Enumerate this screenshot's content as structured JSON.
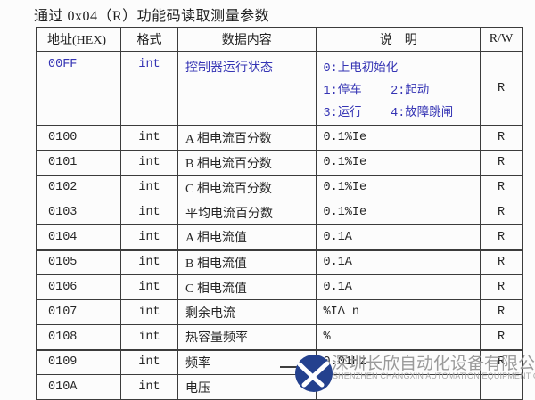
{
  "title": "通过 0x04（R）功能码读取测量参数",
  "table": {
    "headers": {
      "addr": "地址(HEX)",
      "fmt": "格式",
      "content": "数据内容",
      "desc": "说    明",
      "rw": "R/W"
    },
    "rows": [
      {
        "addr": "00FF",
        "fmt": "int",
        "content": "控制器运行状态",
        "desc": [
          "0:上电初始化",
          "1:停车    2:起动",
          "3:运行    4:故障跳闸"
        ],
        "rw": "R",
        "highlight": true
      },
      {
        "addr": "0100",
        "fmt": "int",
        "content": "A 相电流百分数",
        "desc": [
          "0.1%Ie"
        ],
        "rw": "R"
      },
      {
        "addr": "0101",
        "fmt": "int",
        "content": "B 相电流百分数",
        "desc": [
          "0.1%Ie"
        ],
        "rw": "R"
      },
      {
        "addr": "0102",
        "fmt": "int",
        "content": "C 相电流百分数",
        "desc": [
          "0.1%Ie"
        ],
        "rw": "R"
      },
      {
        "addr": "0103",
        "fmt": "int",
        "content": "平均电流百分数",
        "desc": [
          "0.1%Ie"
        ],
        "rw": "R"
      },
      {
        "addr": "0104",
        "fmt": "int",
        "content": "A 相电流值",
        "desc": [
          "0.1A"
        ],
        "rw": "R"
      },
      {
        "addr": "0105",
        "fmt": "int",
        "content": "B 相电流值",
        "desc": [
          "0.1A"
        ],
        "rw": "R",
        "thick_top": true
      },
      {
        "addr": "0106",
        "fmt": "int",
        "content": "C 相电流值",
        "desc": [
          "0.1A"
        ],
        "rw": "R"
      },
      {
        "addr": "0107",
        "fmt": "int",
        "content": "剩余电流",
        "desc": [
          "%IΔ n"
        ],
        "rw": "R"
      },
      {
        "addr": "0108",
        "fmt": "int",
        "content": "热容量频率",
        "desc": [
          "%"
        ],
        "rw": "R"
      },
      {
        "addr": "0109",
        "fmt": "int",
        "content": "频率",
        "desc": [
          "0.01Hz"
        ],
        "rw": "R",
        "thick_top": true
      },
      {
        "addr": "010A",
        "fmt": "int",
        "content": "电压",
        "desc": [],
        "rw": ""
      }
    ]
  },
  "watermark": {
    "company_cn": "深圳长欣自动化设备有限公司",
    "company_en": "SHENZHEN CHANGXIN AUTOMATION EQUIPMENT CO., LTD",
    "logo_color": "#24418e"
  },
  "colors": {
    "highlight_text": "#3534b4",
    "body_text": "#262626",
    "border": "#3c3c3c",
    "watermark_text": "#9a9a9a"
  }
}
